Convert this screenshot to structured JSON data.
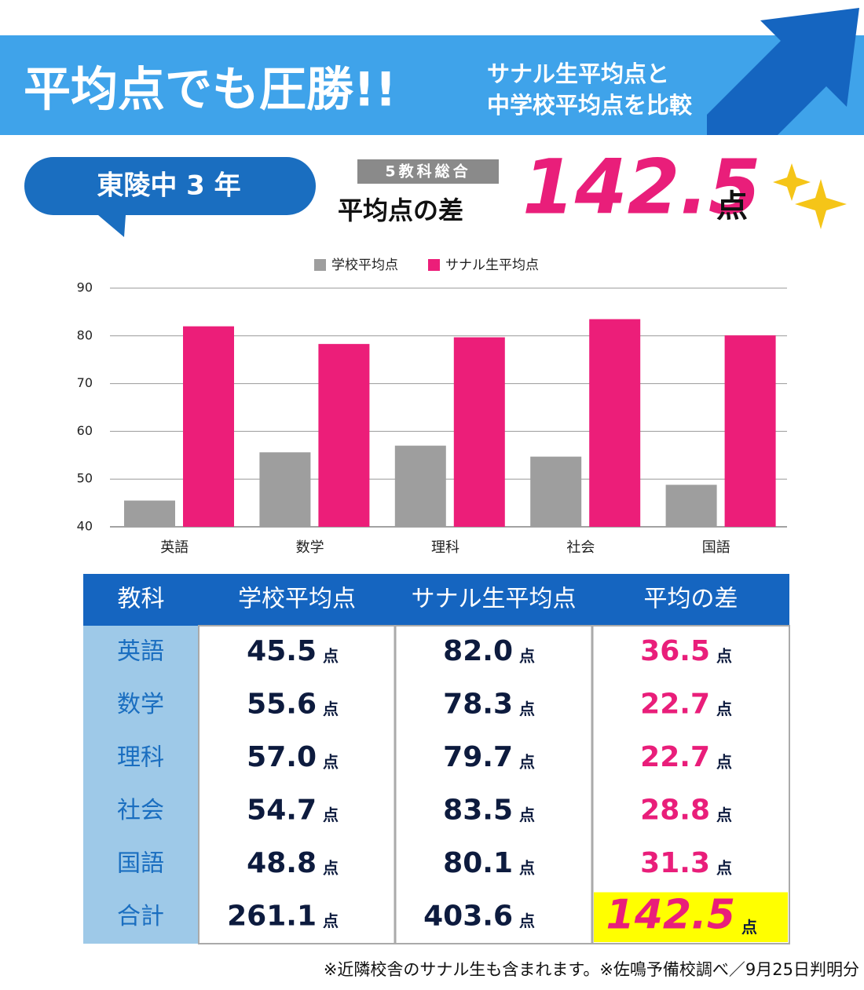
{
  "header": {
    "title": "平均点でも圧勝!!",
    "subtitle": [
      "サナル生平均点と",
      "中学校平均点を比較"
    ]
  },
  "badge": "東陵中 3 年",
  "summary": {
    "tag": "5教科総合",
    "label": "平均点の差",
    "value": "142.5",
    "unit": "点"
  },
  "chart_data": {
    "type": "bar",
    "categories": [
      "英語",
      "数学",
      "理科",
      "社会",
      "国語"
    ],
    "series": [
      {
        "name": "学校平均点",
        "color": "#9e9e9e",
        "values": [
          45.5,
          55.6,
          57.0,
          54.7,
          48.8
        ]
      },
      {
        "name": "サナル生平均点",
        "color": "#ec1e79",
        "values": [
          82.0,
          78.3,
          79.7,
          83.5,
          80.1
        ]
      }
    ],
    "ylim": [
      40,
      90
    ],
    "yticks": [
      40,
      50,
      60,
      70,
      80,
      90
    ],
    "grid": true,
    "legend": "top"
  },
  "table": {
    "header": [
      "教科",
      "学校平均点",
      "サナル生平均点",
      "平均の差"
    ],
    "rows": [
      [
        "英語",
        "45.5",
        "82.0",
        "36.5"
      ],
      [
        "数学",
        "55.6",
        "78.3",
        "22.7"
      ],
      [
        "理科",
        "57.0",
        "79.7",
        "22.7"
      ],
      [
        "社会",
        "54.7",
        "83.5",
        "28.8"
      ],
      [
        "国語",
        "48.8",
        "80.1",
        "31.3"
      ],
      [
        "合計",
        "261.1",
        "403.6",
        "142.5"
      ]
    ],
    "unit": "点"
  },
  "footnote": "※近隣校舎のサナル生も含まれます。※佐鳴予備校調べ／9月25日判明分"
}
